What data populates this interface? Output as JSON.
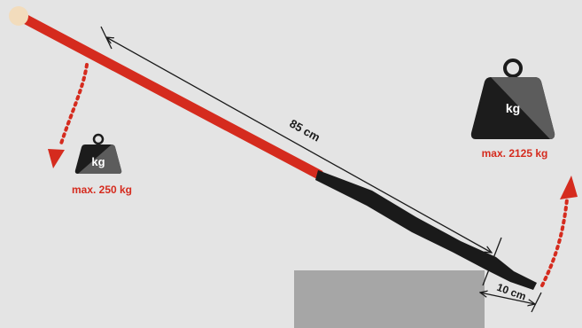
{
  "diagram": {
    "long_arm_length": "85 cm",
    "short_arm_length": "10 cm",
    "small_weight": {
      "symbol": "kg",
      "caption": "max. 250 kg"
    },
    "large_weight": {
      "symbol": "kg",
      "caption": "max. 2125 kg"
    }
  },
  "colors": {
    "background": "#e4e4e4",
    "bar_red": "#d52b1e",
    "bar_black": "#1a1a1a",
    "tip": "#f2dcbc",
    "fulcrum_block": "#a6a6a6",
    "arrow_red": "#d52b1e",
    "caption_red": "#d52b1e",
    "weight_dark": "#1c1c1c",
    "weight_light": "#5c5c5c",
    "weight_text": "#ffffff"
  },
  "icons": {
    "small_weight": "weight-icon",
    "large_weight": "weight-icon",
    "down_arrow": "dotted-curved-arrow-down-icon",
    "up_arrow": "dotted-curved-arrow-up-icon"
  }
}
